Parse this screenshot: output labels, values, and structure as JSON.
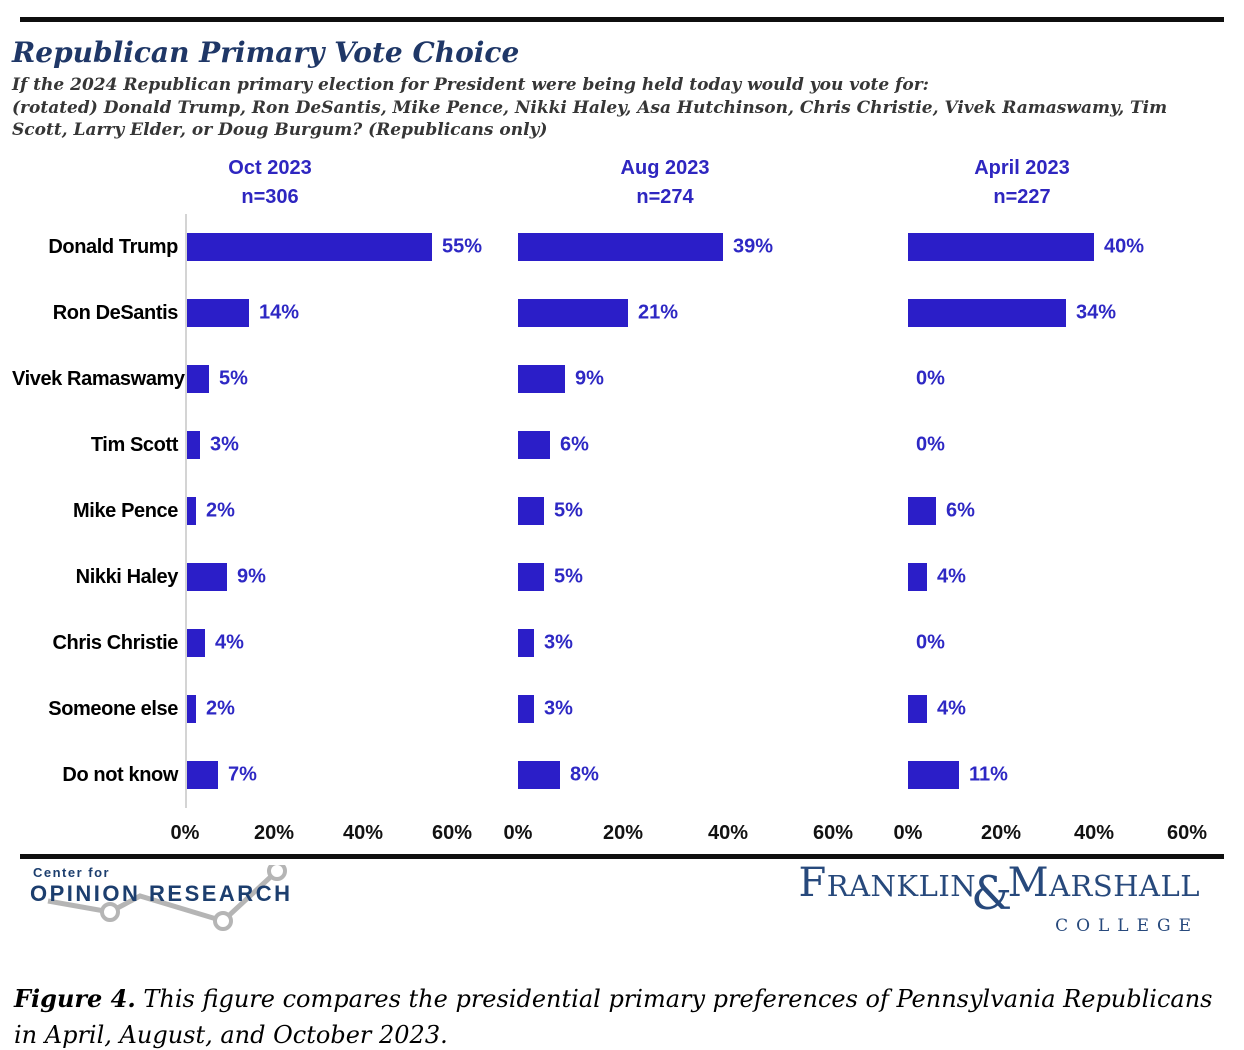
{
  "page": {
    "title": "Republican Primary Vote Choice",
    "subtitle": "If the 2024 Republican primary election for President were being held today would you vote for:\n(rotated) Donald Trump, Ron DeSantis, Mike Pence, Nikki Haley, Asa Hutchinson, Chris Christie, Vivek Ramaswamy, Tim\nScott, Larry Elder, or Doug Burgum? (Republicans only)"
  },
  "chart_data": {
    "type": "bar",
    "orientation": "horizontal",
    "title": "Republican Primary Vote Choice",
    "categories": [
      "Donald Trump",
      "Ron DeSantis",
      "Vivek Ramaswamy",
      "Tim Scott",
      "Mike Pence",
      "Nikki Haley",
      "Chris Christie",
      "Someone else",
      "Do not know"
    ],
    "series": [
      {
        "name": "Oct 2023",
        "n_label": "n=306",
        "values": [
          55,
          14,
          5,
          3,
          2,
          9,
          4,
          2,
          7
        ]
      },
      {
        "name": "Aug 2023",
        "n_label": "n=274",
        "values": [
          39,
          21,
          9,
          6,
          5,
          5,
          3,
          3,
          8
        ]
      },
      {
        "name": "April 2023",
        "n_label": "n=227",
        "values": [
          40,
          34,
          0,
          0,
          6,
          4,
          0,
          4,
          11
        ]
      }
    ],
    "value_suffix": "%",
    "x_ticks": [
      0,
      20,
      40,
      60
    ],
    "x_tick_labels": [
      "0%",
      "20%",
      "40%",
      "60%"
    ],
    "xlim": [
      0,
      70
    ],
    "grid": false,
    "legend": "panel headers above each chart",
    "bar_color": "#2b1ec8",
    "value_label_color": "#2e28c4"
  },
  "logos": {
    "cor": {
      "line1": "Center for",
      "line2": "OPINION RESEARCH"
    },
    "fm": {
      "part1": "F",
      "part2": "RANKLIN",
      "amp": "&",
      "part3": "M",
      "part4": "ARSHALL",
      "college": "COLLEGE"
    }
  },
  "caption": {
    "label": "Figure 4.",
    "text": "This figure compares the presidential primary preferences of Pennsylvania Republicans in April, August, and October 2023."
  }
}
